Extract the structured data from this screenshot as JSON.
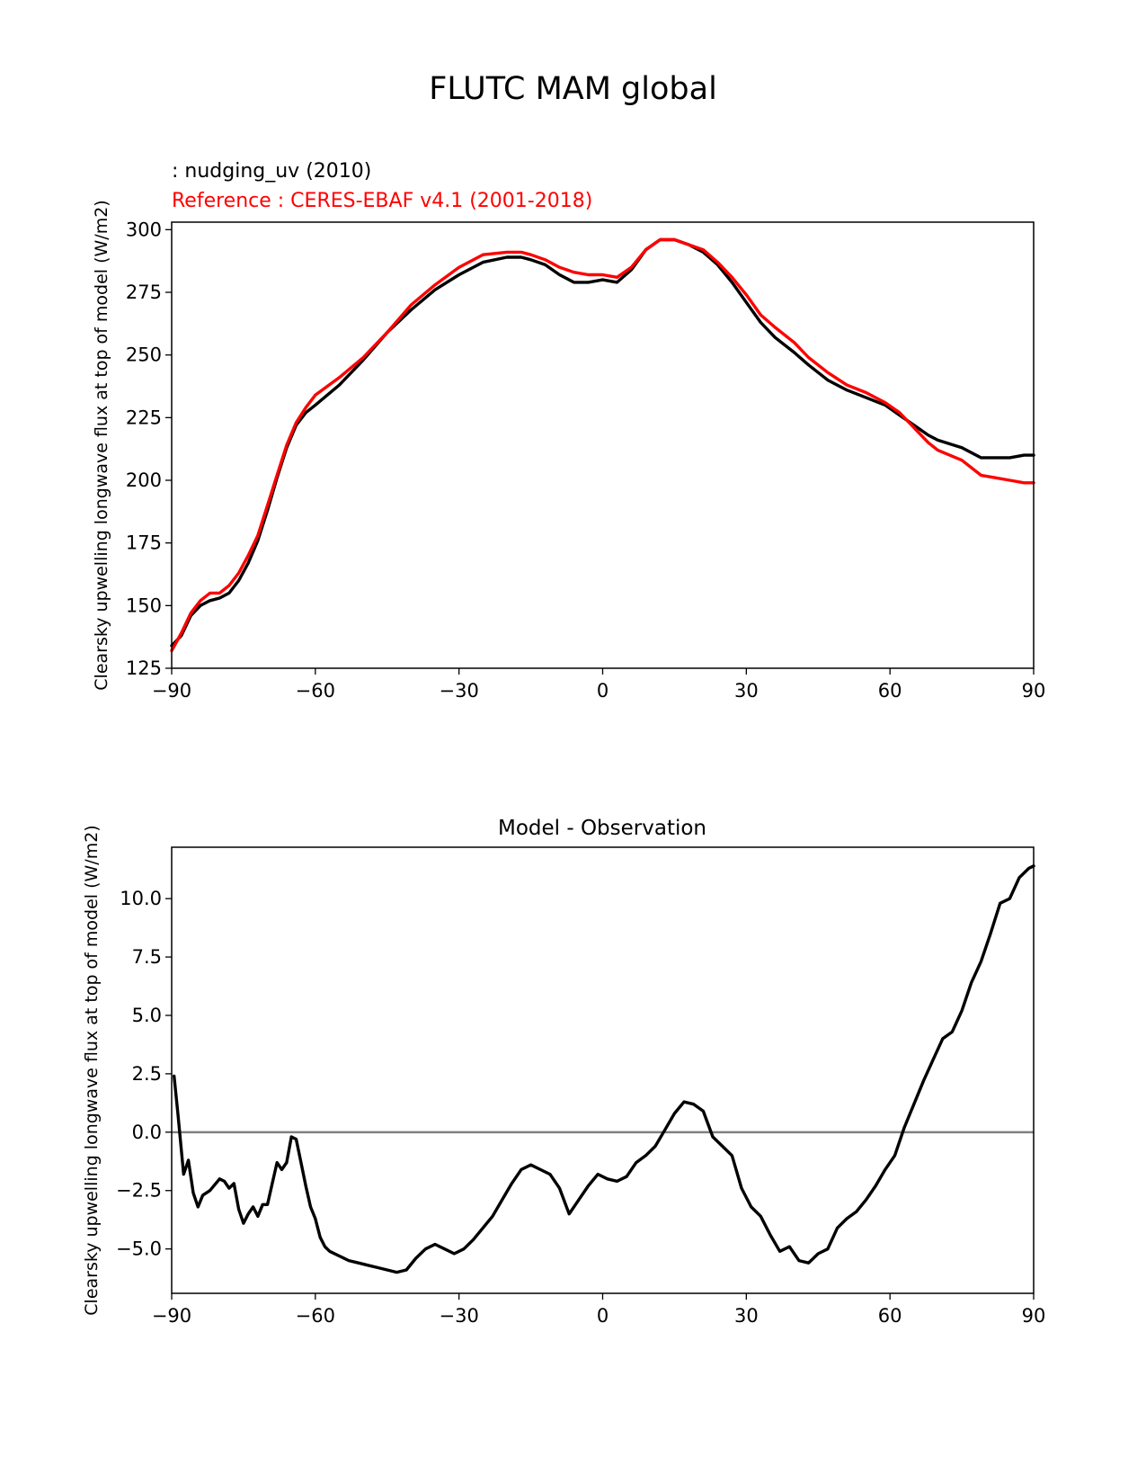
{
  "suptitle": "FLUTC MAM global",
  "colors": {
    "model": "#000000",
    "reference": "#ff0000",
    "zero_line": "#808080"
  },
  "chart_data": [
    {
      "type": "line",
      "title": "",
      "legend_text": [
        {
          "text": " : nudging_uv (2010)",
          "color": "#000000"
        },
        {
          "text": "Reference : CERES-EBAF v4.1 (2001-2018)",
          "color": "#ff0000"
        }
      ],
      "xlabel": "",
      "ylabel": "Clearsky upwelling longwave flux at top of model (W/m2)",
      "xlim": [
        -90,
        90
      ],
      "ylim": [
        125,
        303
      ],
      "xticks": [
        -90,
        -60,
        -30,
        0,
        30,
        60,
        90
      ],
      "xtick_labels": [
        "−90",
        "−60",
        "−30",
        "0",
        "30",
        "60",
        "90"
      ],
      "yticks": [
        125,
        150,
        175,
        200,
        225,
        250,
        275,
        300
      ],
      "ytick_labels": [
        "125",
        "150",
        "175",
        "200",
        "225",
        "250",
        "275",
        "300"
      ],
      "series": [
        {
          "key": "model",
          "color": "#000000",
          "x": [
            -90,
            -88,
            -86,
            -84,
            -82,
            -80,
            -78,
            -76,
            -74,
            -72,
            -70,
            -68,
            -66,
            -64,
            -62,
            -60,
            -55,
            -50,
            -45,
            -40,
            -35,
            -30,
            -25,
            -20,
            -17,
            -15,
            -12,
            -9,
            -6,
            -3,
            0,
            3,
            6,
            9,
            12,
            15,
            18,
            21,
            24,
            27,
            30,
            33,
            36,
            40,
            43,
            47,
            51,
            55,
            59,
            62,
            65,
            68,
            70,
            75,
            79,
            82,
            85,
            88,
            90
          ],
          "y": [
            134,
            138,
            146,
            150,
            152,
            153,
            155,
            160,
            167,
            176,
            188,
            201,
            213,
            222,
            227,
            230,
            238,
            248,
            259,
            268,
            276,
            282,
            287,
            289,
            289,
            288,
            286,
            282,
            279,
            279,
            280,
            279,
            284,
            292,
            296,
            296,
            294,
            291,
            286,
            279,
            271,
            263,
            257,
            251,
            246,
            240,
            236,
            233,
            230,
            226,
            222,
            218,
            216,
            213,
            209,
            209,
            209,
            210,
            210
          ]
        },
        {
          "key": "reference",
          "color": "#ff0000",
          "x": [
            -90,
            -88,
            -86,
            -84,
            -82,
            -80,
            -78,
            -76,
            -74,
            -72,
            -70,
            -68,
            -66,
            -64,
            -62,
            -60,
            -55,
            -50,
            -45,
            -40,
            -35,
            -30,
            -25,
            -20,
            -17,
            -15,
            -12,
            -9,
            -6,
            -3,
            0,
            3,
            6,
            9,
            12,
            15,
            18,
            21,
            24,
            27,
            30,
            33,
            36,
            40,
            43,
            47,
            51,
            55,
            59,
            62,
            65,
            68,
            70,
            75,
            79,
            82,
            85,
            88,
            90
          ],
          "y": [
            132,
            139,
            147,
            152,
            155,
            155,
            158,
            163,
            170,
            178,
            190,
            202,
            214,
            223,
            229,
            234,
            241,
            249,
            259,
            270,
            278,
            285,
            290,
            291,
            291,
            290,
            288,
            285,
            283,
            282,
            282,
            281,
            285,
            292,
            296,
            296,
            294,
            292,
            287,
            281,
            274,
            266,
            261,
            255,
            249,
            243,
            238,
            235,
            231,
            227,
            221,
            215,
            212,
            208,
            202,
            201,
            200,
            199,
            199
          ]
        }
      ]
    },
    {
      "type": "line",
      "title": "Model - Observation",
      "xlabel": "",
      "ylabel": "Clearsky upwelling longwave flux at top of model (W/m2)",
      "xlim": [
        -90,
        90
      ],
      "ylim": [
        -6.9,
        12.2
      ],
      "xticks": [
        -90,
        -60,
        -30,
        0,
        30,
        60,
        90
      ],
      "xtick_labels": [
        "−90",
        "−60",
        "−30",
        "0",
        "30",
        "60",
        "90"
      ],
      "yticks": [
        -5.0,
        -2.5,
        0.0,
        2.5,
        5.0,
        7.5,
        10.0
      ],
      "ytick_labels": [
        "−5.0",
        "−2.5",
        "0.0",
        "2.5",
        "5.0",
        "7.5",
        "10.0"
      ],
      "hline": 0,
      "series": [
        {
          "key": "difference",
          "color": "#000000",
          "x": [
            -89.5,
            -88.7,
            -87.5,
            -86.5,
            -85.5,
            -84.5,
            -83.5,
            -82,
            -80,
            -79,
            -78,
            -77,
            -76,
            -75,
            -74,
            -73,
            -72,
            -71,
            -70,
            -69,
            -68,
            -67,
            -66,
            -65,
            -64,
            -63,
            -62,
            -61,
            -60,
            -59,
            -58,
            -57,
            -55,
            -53,
            -51,
            -49,
            -47,
            -45,
            -43,
            -41,
            -39,
            -37,
            -35,
            -33,
            -31,
            -29,
            -27,
            -25,
            -23,
            -21,
            -19,
            -17,
            -15,
            -13,
            -11,
            -9,
            -7,
            -5,
            -3,
            -1,
            1,
            3,
            5,
            7,
            9,
            11,
            13,
            15,
            17,
            19,
            21,
            23,
            25,
            27,
            29,
            31,
            33,
            35,
            37,
            39,
            41,
            43,
            45,
            47,
            49,
            51,
            53,
            55,
            57,
            59,
            61,
            63,
            65,
            67,
            69,
            71,
            73,
            75,
            77,
            79,
            81,
            83,
            85,
            87,
            89,
            90
          ],
          "y": [
            2.4,
            0.8,
            -1.8,
            -1.2,
            -2.6,
            -3.2,
            -2.7,
            -2.5,
            -2.0,
            -2.1,
            -2.4,
            -2.2,
            -3.3,
            -3.9,
            -3.5,
            -3.2,
            -3.6,
            -3.1,
            -3.1,
            -2.2,
            -1.3,
            -1.6,
            -1.3,
            -0.2,
            -0.3,
            -1.3,
            -2.3,
            -3.2,
            -3.7,
            -4.5,
            -4.9,
            -5.1,
            -5.3,
            -5.5,
            -5.6,
            -5.7,
            -5.8,
            -5.9,
            -6.0,
            -5.9,
            -5.4,
            -5.0,
            -4.8,
            -5.0,
            -5.2,
            -5.0,
            -4.6,
            -4.1,
            -3.6,
            -2.9,
            -2.2,
            -1.6,
            -1.4,
            -1.6,
            -1.8,
            -2.4,
            -3.5,
            -2.9,
            -2.3,
            -1.8,
            -2.0,
            -2.1,
            -1.9,
            -1.3,
            -1.0,
            -0.6,
            0.1,
            0.8,
            1.3,
            1.2,
            0.9,
            -0.2,
            -0.6,
            -1.0,
            -2.4,
            -3.2,
            -3.6,
            -4.4,
            -5.1,
            -4.9,
            -5.5,
            -5.6,
            -5.2,
            -5.0,
            -4.1,
            -3.7,
            -3.4,
            -2.9,
            -2.3,
            -1.6,
            -1.0,
            0.2,
            1.2,
            2.2,
            3.1,
            4.0,
            4.3,
            5.2,
            6.4,
            7.3,
            8.5,
            9.8,
            10.0,
            10.9,
            11.3,
            11.4
          ]
        }
      ]
    }
  ]
}
